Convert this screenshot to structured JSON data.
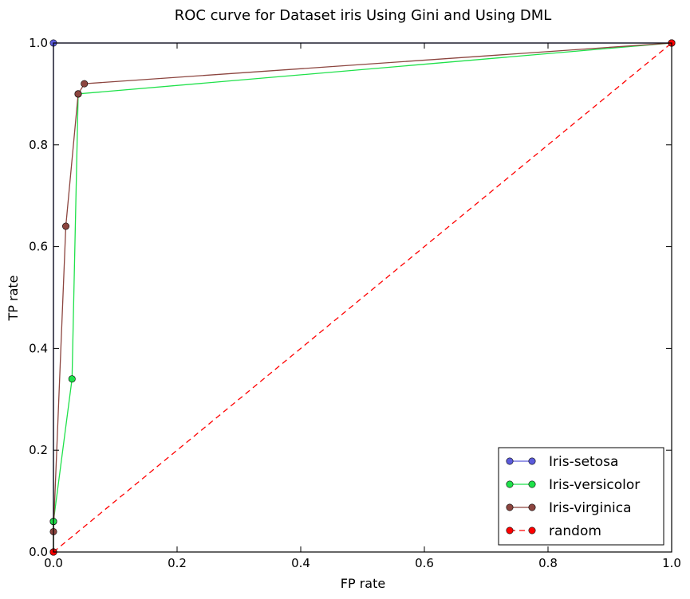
{
  "chart_data": {
    "type": "line",
    "title": "ROC curve for Dataset iris Using Gini and Using DML",
    "xlabel": "FP rate",
    "ylabel": "TP rate",
    "xlim": [
      0,
      1
    ],
    "ylim": [
      0,
      1
    ],
    "x_ticks": [
      "0.0",
      "0.2",
      "0.4",
      "0.6",
      "0.8",
      "1.0"
    ],
    "y_ticks": [
      "0.0",
      "0.2",
      "0.4",
      "0.6",
      "0.8",
      "1.0"
    ],
    "grid": false,
    "legend_position": "lower-right",
    "series": [
      {
        "name": "Iris-setosa",
        "color": "#5b5bdb",
        "dashed": false,
        "x": [
          0.0,
          0.0,
          0.0,
          1.0
        ],
        "y": [
          0.0,
          0.06,
          1.0,
          1.0
        ]
      },
      {
        "name": "Iris-versicolor",
        "color": "#1fe14a",
        "dashed": false,
        "x": [
          0.0,
          0.0,
          0.03,
          0.04,
          0.04,
          1.0
        ],
        "y": [
          0.0,
          0.06,
          0.34,
          0.9,
          0.9,
          1.0
        ]
      },
      {
        "name": "Iris-virginica",
        "color": "#8c453f",
        "dashed": false,
        "x": [
          0.0,
          0.0,
          0.02,
          0.04,
          0.05,
          1.0
        ],
        "y": [
          0.0,
          0.04,
          0.64,
          0.9,
          0.92,
          1.0
        ]
      },
      {
        "name": "random",
        "color": "#ff0000",
        "dashed": true,
        "x": [
          0.0,
          1.0
        ],
        "y": [
          0.0,
          1.0
        ]
      }
    ]
  }
}
